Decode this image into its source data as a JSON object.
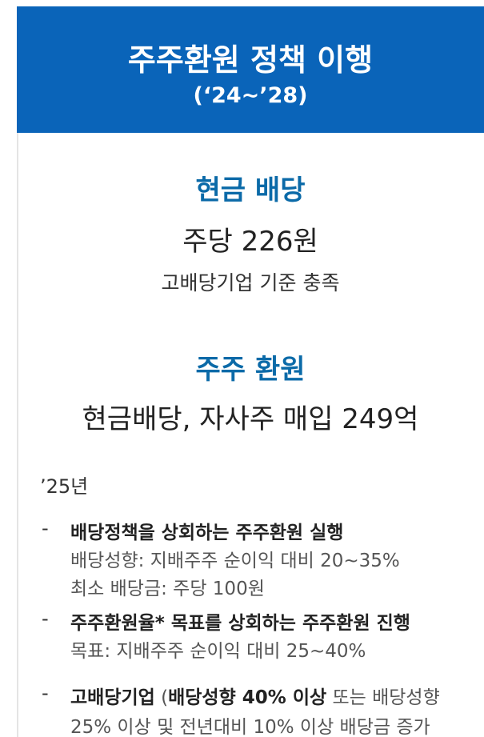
{
  "header": {
    "title": "주주환원 정책 이행",
    "subtitle": "(‘24~’28)"
  },
  "sections": [
    {
      "heading": "현금 배당",
      "main": "주당 226원",
      "note": "고배당기업 기준 충족"
    },
    {
      "heading": "주주 환원",
      "main": "현금배당, 자사주 매입 249억"
    }
  ],
  "year": "’25년",
  "bullet": "-",
  "items": [
    {
      "title": "배당정책을 상회하는 주주환원 실행",
      "details": [
        "배당성향: 지배주주 순이익 대비 20~35%",
        "최소 배당금: 주당 100원"
      ]
    },
    {
      "title": "주주환원율* 목표를 상회하는 주주환원 진행",
      "details": [
        "목표: 지배주주 순이익 대비 25~40%"
      ]
    },
    {
      "lines": [
        [
          {
            "text": "고배당기업",
            "bold": true
          },
          {
            "text": " (",
            "bold": false
          },
          {
            "text": "배당성향 40% 이상",
            "bold": true
          },
          {
            "text": " 또는 배당성향",
            "bold": false
          }
        ],
        [
          {
            "text": "25% 이상 및 전년대비 10% 이상 배당금 증가",
            "bold": false
          }
        ]
      ]
    }
  ]
}
